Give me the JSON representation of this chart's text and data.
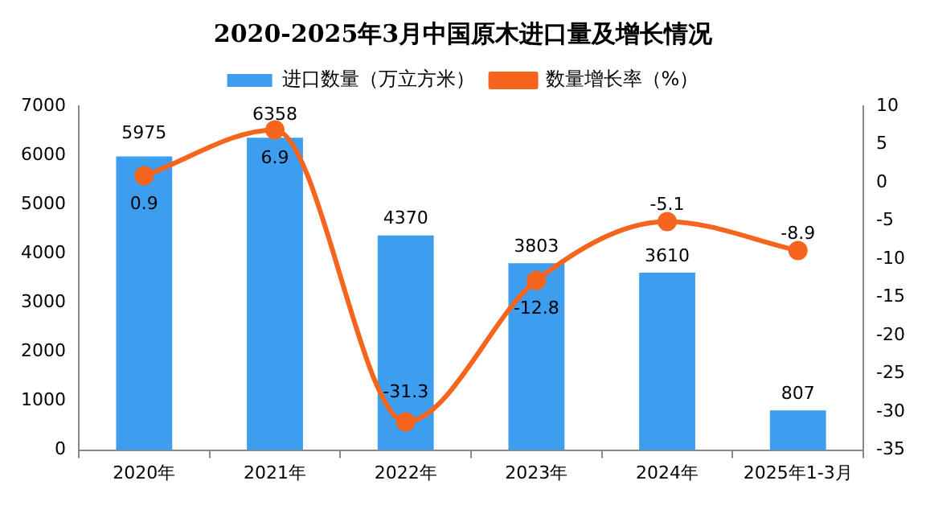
{
  "chart_data": {
    "type": "bar",
    "title": "2020-2025年3月中国原木进口量及增长情况",
    "categories": [
      "2020年",
      "2021年",
      "2022年",
      "2023年",
      "2024年",
      "2025年1-3月"
    ],
    "series": [
      {
        "name": "进口数量（万立方米）",
        "color": "#3d9ef0",
        "values": [
          5975,
          6358,
          4370,
          3803,
          3610,
          807
        ]
      },
      {
        "name": "数量增长率（%）",
        "type": "line",
        "axis": "y2",
        "color": "#f5651d",
        "values": [
          0.9,
          6.9,
          -31.3,
          -12.8,
          -5.1,
          -8.9
        ]
      }
    ],
    "ylim": [
      0,
      7000
    ],
    "yticks": [
      0,
      1000,
      2000,
      3000,
      4000,
      5000,
      6000,
      7000
    ],
    "y2lim": [
      -35,
      10
    ],
    "y2ticks": [
      -35,
      -30,
      -25,
      -20,
      -15,
      -10,
      -5,
      0,
      5,
      10
    ],
    "grid": false,
    "legend": "top",
    "marker": "circle",
    "line_style": "solid",
    "data_labels": true
  }
}
